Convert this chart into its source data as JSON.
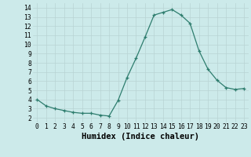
{
  "x": [
    0,
    1,
    2,
    3,
    4,
    5,
    6,
    7,
    8,
    9,
    10,
    11,
    12,
    13,
    14,
    15,
    16,
    17,
    18,
    19,
    20,
    21,
    22,
    23
  ],
  "y": [
    4.0,
    3.3,
    3.0,
    2.8,
    2.6,
    2.5,
    2.5,
    2.3,
    2.2,
    3.9,
    6.4,
    8.5,
    10.8,
    13.2,
    13.5,
    13.8,
    13.2,
    12.3,
    9.3,
    7.3,
    6.1,
    5.3,
    5.1,
    5.2
  ],
  "xlabel": "Humidex (Indice chaleur)",
  "xlim": [
    -0.5,
    23.5
  ],
  "ylim": [
    1.5,
    14.5
  ],
  "yticks": [
    2,
    3,
    4,
    5,
    6,
    7,
    8,
    9,
    10,
    11,
    12,
    13,
    14
  ],
  "xticks": [
    0,
    1,
    2,
    3,
    4,
    5,
    6,
    7,
    8,
    9,
    10,
    11,
    12,
    13,
    14,
    15,
    16,
    17,
    18,
    19,
    20,
    21,
    22,
    23
  ],
  "line_color": "#2e7d6e",
  "marker_color": "#2e7d6e",
  "bg_color": "#cceaea",
  "grid_color": "#b8d4d4",
  "xlabel_fontsize": 7.5,
  "tick_fontsize": 5.8
}
